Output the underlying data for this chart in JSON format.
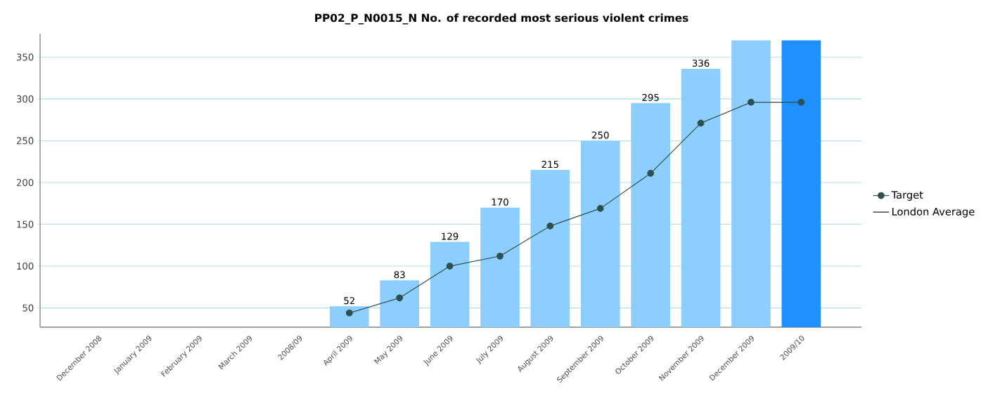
{
  "chart_data": {
    "type": "bar",
    "title": "PP02_P_N0015_N No. of recorded most serious violent crimes",
    "categories": [
      "December 2008",
      "January 2009",
      "February 2009",
      "March 2009",
      "2008/09",
      "April 2009",
      "May 2009",
      "June 2009",
      "July 2009",
      "August 2009",
      "September 2009",
      "October 2009",
      "November 2009",
      "December 2009",
      "2009/10"
    ],
    "series": [
      {
        "colors": [
          "#8ccfff",
          "#8ccfff",
          "#8ccfff",
          "#8ccfff",
          "#8ccfff",
          "#8ccfff",
          "#8ccfff",
          "#8ccfff",
          "#8ccfff",
          "#8ccfff",
          "#8ccfff",
          "#8ccfff",
          "#8ccfff",
          "#8ccfff",
          "#1e90ff"
        ],
        "values": [
          null,
          null,
          null,
          null,
          null,
          52,
          83,
          129,
          170,
          215,
          250,
          295,
          336,
          370,
          370
        ],
        "value_labels": [
          null,
          null,
          null,
          null,
          null,
          "52",
          "83",
          "129",
          "170",
          "215",
          "250",
          "295",
          "336",
          null,
          null
        ]
      },
      {
        "type": "line",
        "name": "Target",
        "color": "#2f4f4f",
        "marker": "circle",
        "values": [
          null,
          null,
          null,
          null,
          null,
          44,
          62,
          100,
          112,
          148,
          169,
          211,
          271,
          296,
          296
        ]
      },
      {
        "type": "line",
        "name": "London Average",
        "color": "#1a1a1a",
        "marker": "none",
        "values": [
          null,
          null,
          null,
          null,
          null,
          null,
          null,
          null,
          null,
          null,
          null,
          null,
          null,
          null,
          null
        ]
      }
    ],
    "ylim": [
      27,
      378
    ],
    "yticks": [
      50,
      100,
      150,
      200,
      250,
      300,
      350
    ],
    "grid": "y",
    "legend": "right"
  }
}
